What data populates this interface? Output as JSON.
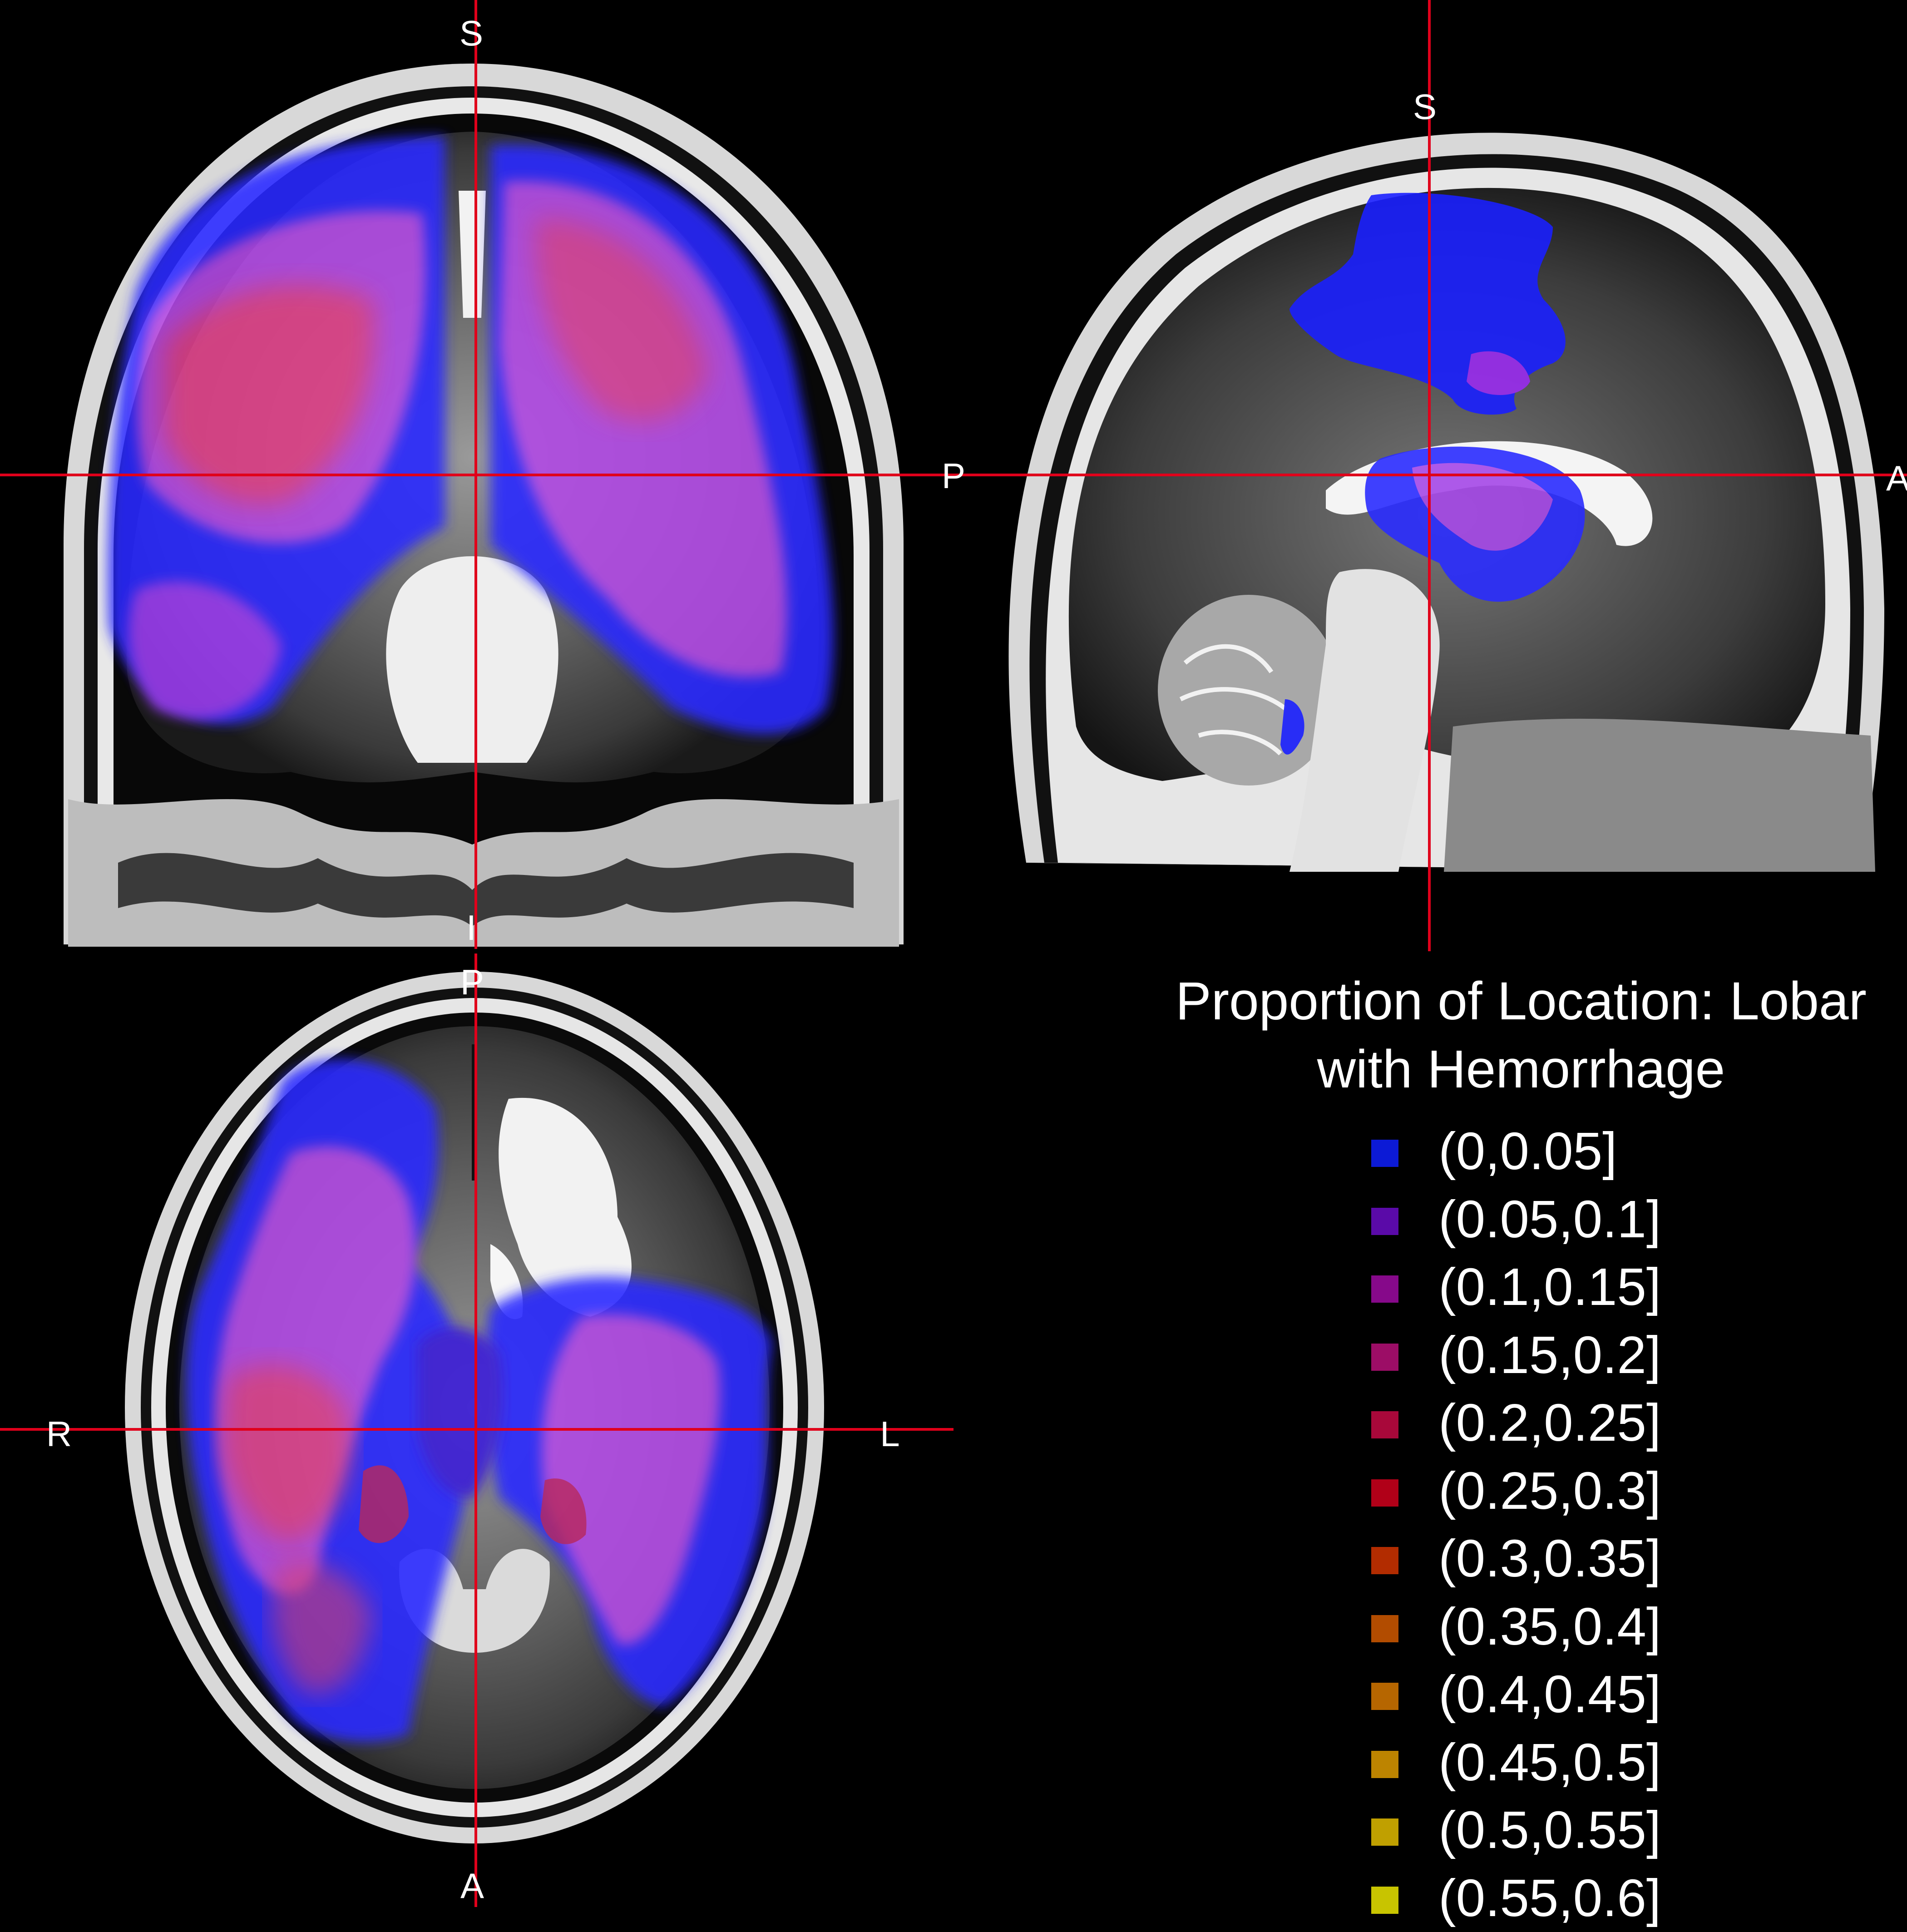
{
  "views": {
    "coronal": {
      "top": "S",
      "bottom": "I"
    },
    "sagittal": {
      "top": "S",
      "left": "P",
      "right": "A"
    },
    "axial": {
      "top": "P",
      "bottom": "A",
      "left": "R",
      "right": "L"
    }
  },
  "colors": {
    "background": "#000000",
    "crosshair": "#e0001b",
    "overlay_low": "#2a2cff",
    "overlay_mid": "#9a3cf0",
    "overlay_high": "#f0406a"
  },
  "legend": {
    "title_line1": "Proportion of Location: Lobar",
    "title_line2": "with Hemorrhage",
    "items": [
      {
        "label": "(0,0.05]",
        "color": "#0c1ad6"
      },
      {
        "label": "(0.05,0.1]",
        "color": "#5a0aa8"
      },
      {
        "label": "(0.1,0.15]",
        "color": "#86098a"
      },
      {
        "label": "(0.15,0.2]",
        "color": "#9c0d66"
      },
      {
        "label": "(0.2,0.25]",
        "color": "#a8083a"
      },
      {
        "label": "(0.25,0.3]",
        "color": "#b10018"
      },
      {
        "label": "(0.3,0.35]",
        "color": "#b22c00"
      },
      {
        "label": "(0.35,0.4]",
        "color": "#b24c00"
      },
      {
        "label": "(0.4,0.45]",
        "color": "#b66600"
      },
      {
        "label": "(0.45,0.5]",
        "color": "#bd8400"
      },
      {
        "label": "(0.5,0.55]",
        "color": "#c0a000"
      },
      {
        "label": "(0.55,0.6]",
        "color": "#c8c400"
      }
    ]
  }
}
